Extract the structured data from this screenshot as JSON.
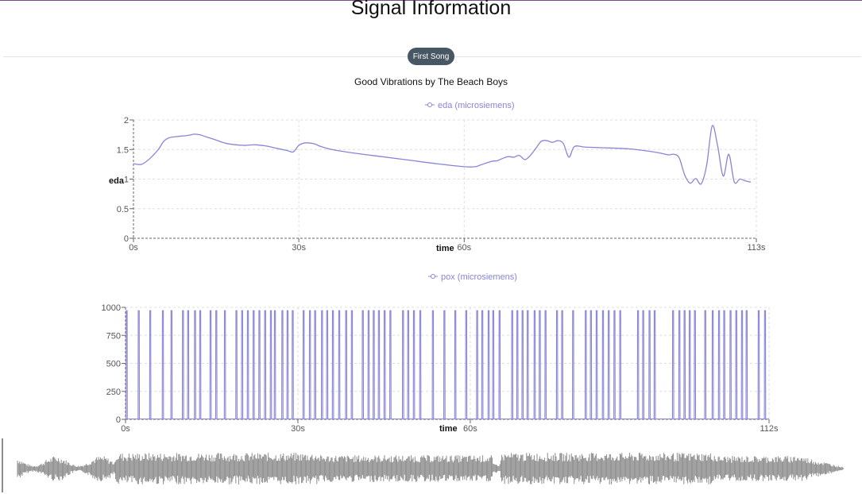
{
  "page": {
    "title": "Signal Information"
  },
  "controls": {
    "song_button": "First Song"
  },
  "song": {
    "title": "Good Vibrations by The Beach Boys"
  },
  "colors": {
    "series": "#8884d8",
    "grid": "#dddddd",
    "waveform": "#8a8a8a",
    "button": "#475763",
    "axis": "#666666"
  },
  "chart_data": [
    {
      "type": "line",
      "legend": "eda (microsiemens)",
      "xlabel": "time",
      "ylabel": "eda",
      "xlim": [
        0,
        113
      ],
      "ylim": [
        0,
        2
      ],
      "x_ticks": [
        0,
        30,
        60,
        113
      ],
      "x_tick_labels": [
        "0s",
        "30s",
        "60s",
        "113s"
      ],
      "y_ticks": [
        0,
        0.5,
        1,
        1.5,
        2
      ],
      "y_tick_labels": [
        "0",
        "0.5",
        "1",
        "1.5",
        "2"
      ],
      "grid": true,
      "legend_position": "top-center",
      "series": [
        {
          "name": "eda (microsiemens)",
          "x": [
            0,
            1.5,
            3,
            4.5,
            5.5,
            6.5,
            8,
            10,
            11,
            12,
            13,
            14,
            15,
            17,
            20,
            22,
            24,
            26,
            28,
            29,
            30,
            31,
            32,
            33,
            34,
            36,
            40,
            45,
            50,
            55,
            60,
            62,
            63,
            65,
            66,
            67,
            68,
            69,
            70,
            71,
            72,
            73,
            74,
            75,
            76,
            77,
            78,
            79,
            80,
            82,
            85,
            90,
            95,
            97,
            98,
            99,
            100,
            101,
            102,
            103,
            104,
            105,
            106,
            107,
            108,
            109,
            110,
            111,
            112
          ],
          "values": [
            1.26,
            1.25,
            1.35,
            1.5,
            1.64,
            1.7,
            1.72,
            1.74,
            1.76,
            1.75,
            1.72,
            1.69,
            1.66,
            1.6,
            1.57,
            1.58,
            1.56,
            1.52,
            1.48,
            1.46,
            1.57,
            1.61,
            1.61,
            1.59,
            1.55,
            1.5,
            1.44,
            1.38,
            1.32,
            1.26,
            1.21,
            1.21,
            1.24,
            1.3,
            1.31,
            1.35,
            1.38,
            1.37,
            1.4,
            1.33,
            1.4,
            1.52,
            1.64,
            1.65,
            1.62,
            1.65,
            1.6,
            1.37,
            1.55,
            1.54,
            1.53,
            1.51,
            1.45,
            1.41,
            1.42,
            1.36,
            1.07,
            0.93,
            1.01,
            0.92,
            1.24,
            1.9,
            1.55,
            1.05,
            1.42,
            0.95,
            1.0,
            0.97,
            0.95
          ]
        }
      ]
    },
    {
      "type": "bar",
      "legend": "pox (microsiemens)",
      "xlabel": "time",
      "xlim": [
        0,
        112
      ],
      "ylim": [
        0,
        1000
      ],
      "x_ticks": [
        0,
        30,
        60,
        112
      ],
      "x_tick_labels": [
        "0s",
        "30s",
        "60s",
        "112s"
      ],
      "y_ticks": [
        0,
        250,
        500,
        750,
        1000
      ],
      "y_tick_labels": [
        "0",
        "250",
        "500",
        "750",
        "1000"
      ],
      "grid": true,
      "legend_position": "top-center",
      "series": [
        {
          "name": "pox (microsiemens)",
          "x": [
            0.2,
            2.3,
            4.3,
            6.5,
            8,
            10,
            10.9,
            12.1,
            13,
            14.8,
            15.8,
            17.3,
            19.3,
            20.3,
            21.3,
            22.3,
            23.3,
            24.3,
            25.3,
            26,
            27.3,
            28.2,
            29.1,
            31,
            32.1,
            33,
            34.2,
            35.1,
            36.1,
            37.2,
            38.4,
            39.4,
            41.3,
            42.3,
            43.2,
            44.1,
            45.1,
            46.1,
            48.3,
            49.2,
            50.2,
            51.3,
            53.5,
            55.5,
            57.4,
            59.3,
            61.2,
            62.1,
            63.2,
            64,
            65.1,
            67.3,
            68.2,
            69.1,
            70,
            71.2,
            72.1,
            73.1,
            75.1,
            76,
            77.9,
            80.1,
            81,
            82,
            83.1,
            84.1,
            85.1,
            86.1,
            89.2,
            90.1,
            91.2,
            92.1,
            95.3,
            96.4,
            97.3,
            98.2,
            99.1,
            100.9,
            102.2,
            103.3,
            104.2,
            105.3,
            106.3,
            107.3,
            108.1,
            110.2,
            111.3
          ],
          "values": [
            970,
            970,
            970,
            970,
            970,
            970,
            970,
            970,
            970,
            970,
            970,
            970,
            970,
            970,
            970,
            970,
            970,
            970,
            970,
            970,
            970,
            970,
            970,
            970,
            970,
            970,
            970,
            970,
            970,
            970,
            970,
            970,
            970,
            970,
            970,
            970,
            970,
            970,
            970,
            970,
            970,
            970,
            970,
            970,
            970,
            970,
            970,
            970,
            970,
            970,
            970,
            970,
            970,
            970,
            970,
            970,
            970,
            970,
            970,
            970,
            970,
            970,
            970,
            970,
            970,
            970,
            970,
            970,
            970,
            970,
            970,
            970,
            970,
            970,
            970,
            970,
            970,
            970,
            970,
            970,
            970,
            970,
            970,
            970,
            970,
            970,
            970
          ]
        }
      ]
    }
  ]
}
